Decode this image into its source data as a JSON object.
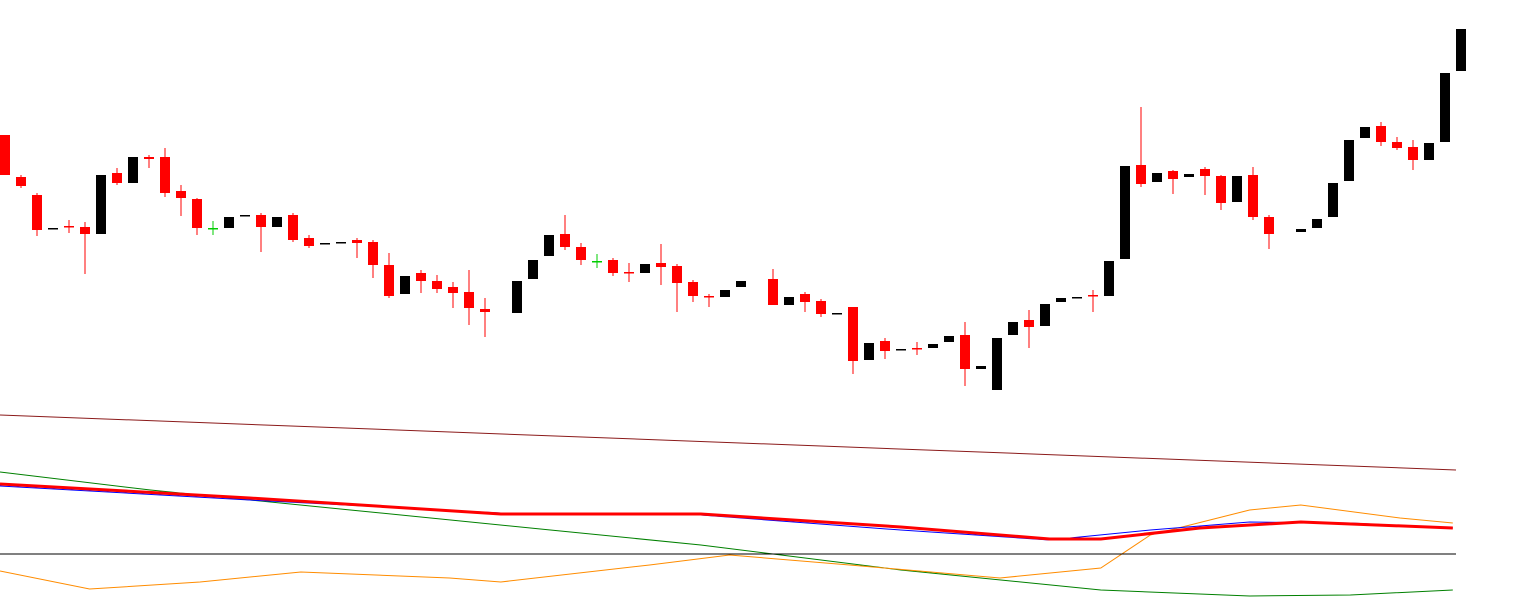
{
  "chart_data": {
    "type": "candlestick",
    "xlim": [
      0,
      94.75
    ],
    "ylim": [
      -7,
      600
    ],
    "x": [
      0,
      1,
      2,
      3,
      4,
      5,
      6,
      7,
      8,
      9,
      10,
      11,
      12,
      13,
      14,
      15,
      16,
      17,
      18,
      19,
      20,
      21,
      22,
      23,
      24,
      25,
      26,
      27,
      28,
      29,
      30,
      32,
      33,
      34,
      35,
      36,
      37,
      38,
      39,
      40,
      41,
      42,
      43,
      44,
      45,
      46,
      48,
      49,
      50,
      51,
      52,
      53,
      54,
      55,
      56,
      57,
      58,
      59,
      60,
      61,
      62,
      63,
      64,
      65,
      66,
      67,
      68,
      69,
      70,
      71,
      72,
      73,
      74,
      75,
      76,
      77,
      78,
      79,
      81,
      82,
      83,
      84,
      85,
      86,
      87,
      88,
      89,
      90,
      91
    ],
    "open": [
      465,
      423,
      405,
      372,
      374,
      373,
      366,
      427,
      417,
      443,
      443,
      409,
      401,
      372,
      372,
      385,
      385,
      373,
      385,
      362,
      357,
      358,
      360,
      358,
      335,
      306,
      327,
      319,
      313,
      308,
      291,
      287,
      321,
      344,
      366,
      353,
      339,
      340,
      328,
      327,
      337,
      334,
      318,
      304,
      303,
      313,
      321,
      295,
      306,
      299,
      287,
      293,
      240,
      259,
      251,
      252,
      252,
      258,
      265,
      231,
      210,
      265,
      280,
      274,
      298,
      303,
      305,
      304,
      341,
      435,
      418,
      429,
      423,
      431,
      424,
      398,
      425,
      383,
      368,
      372,
      383,
      419,
      462,
      474,
      458,
      453,
      440,
      458,
      529
    ],
    "high": [
      465,
      425,
      407,
      372,
      380,
      378,
      425,
      432,
      443,
      445,
      452,
      415,
      402,
      379,
      383,
      385,
      387,
      383,
      387,
      365,
      357,
      358,
      362,
      360,
      347,
      324,
      330,
      325,
      318,
      330,
      302,
      319,
      340,
      365,
      385,
      357,
      346,
      342,
      337,
      336,
      356,
      336,
      320,
      306,
      310,
      319,
      331,
      303,
      308,
      301,
      287,
      293,
      257,
      262,
      251,
      258,
      256,
      264,
      278,
      234,
      262,
      278,
      290,
      296,
      302,
      303,
      310,
      339,
      434,
      493,
      427,
      430,
      426,
      433,
      425,
      424,
      433,
      385,
      371,
      381,
      417,
      460,
      473,
      478,
      463,
      460,
      457,
      527,
      571
    ],
    "low": [
      425,
      412,
      364,
      372,
      367,
      326,
      366,
      415,
      417,
      432,
      403,
      384,
      365,
      365,
      372,
      385,
      348,
      373,
      358,
      352,
      357,
      358,
      342,
      322,
      302,
      306,
      307,
      307,
      292,
      275,
      263,
      287,
      321,
      344,
      350,
      335,
      332,
      324,
      318,
      327,
      315,
      288,
      298,
      293,
      303,
      313,
      295,
      295,
      288,
      283,
      287,
      226,
      240,
      241,
      251,
      245,
      252,
      258,
      214,
      231,
      210,
      265,
      252,
      274,
      298,
      303,
      288,
      304,
      341,
      413,
      418,
      406,
      423,
      405,
      390,
      398,
      380,
      351,
      368,
      372,
      383,
      419,
      462,
      454,
      450,
      430,
      440,
      458,
      529
    ],
    "close": [
      425,
      414,
      370,
      372,
      374,
      366,
      425,
      417,
      443,
      441,
      407,
      402,
      372,
      372,
      383,
      385,
      373,
      383,
      360,
      354,
      357,
      358,
      357,
      335,
      304,
      324,
      319,
      311,
      307,
      292,
      288,
      319,
      340,
      365,
      353,
      340,
      339,
      327,
      328,
      336,
      333,
      317,
      304,
      304,
      310,
      319,
      295,
      303,
      298,
      286,
      287,
      239,
      257,
      249,
      251,
      252,
      256,
      264,
      231,
      234,
      262,
      278,
      273,
      296,
      302,
      303,
      305,
      339,
      434,
      416,
      427,
      421,
      426,
      424,
      397,
      424,
      383,
      366,
      371,
      381,
      417,
      460,
      473,
      458,
      452,
      440,
      457,
      527,
      571
    ],
    "colors": [
      "#ff0000",
      "#ff0000",
      "#ff0000",
      "#000000",
      "#ff0000",
      "#ff0000",
      "#000000",
      "#ff0000",
      "#000000",
      "#ff0000",
      "#ff0000",
      "#ff0000",
      "#ff0000",
      "#00cc00",
      "#000000",
      "#000000",
      "#ff0000",
      "#000000",
      "#ff0000",
      "#ff0000",
      "#000000",
      "#000000",
      "#ff0000",
      "#ff0000",
      "#ff0000",
      "#000000",
      "#ff0000",
      "#ff0000",
      "#ff0000",
      "#ff0000",
      "#ff0000",
      "#000000",
      "#000000",
      "#000000",
      "#ff0000",
      "#ff0000",
      "#00cc00",
      "#ff0000",
      "#ff0000",
      "#000000",
      "#ff0000",
      "#ff0000",
      "#ff0000",
      "#ff0000",
      "#000000",
      "#000000",
      "#ff0000",
      "#000000",
      "#ff0000",
      "#ff0000",
      "#000000",
      "#ff0000",
      "#000000",
      "#ff0000",
      "#000000",
      "#ff0000",
      "#000000",
      "#000000",
      "#ff0000",
      "#000000",
      "#000000",
      "#000000",
      "#ff0000",
      "#000000",
      "#000000",
      "#000000",
      "#ff0000",
      "#000000",
      "#000000",
      "#ff0000",
      "#000000",
      "#ff0000",
      "#000000",
      "#ff0000",
      "#ff0000",
      "#000000",
      "#ff0000",
      "#ff0000",
      "#000000",
      "#000000",
      "#000000",
      "#000000",
      "#000000",
      "#ff0000",
      "#ff0000",
      "#ff0000",
      "#000000",
      "#000000",
      "#000000"
    ],
    "lines": [
      {
        "color": "#8b1a1a",
        "line_width": 1,
        "x": [
          0,
          91
        ],
        "values": [
          185,
          130
        ]
      },
      {
        "color": "#008000",
        "line_width": 1,
        "x": [
          0,
          9.4,
          21.9,
          34.4,
          43.8,
          56.3,
          68.8,
          78.1,
          84.4,
          90.8
        ],
        "values": [
          128,
          110,
          90,
          70,
          55,
          30,
          10,
          4,
          5,
          10
        ]
      },
      {
        "color": "#ff8c00",
        "line_width": 1,
        "x": [
          0,
          5.6,
          12.5,
          18.8,
          28.1,
          31.3,
          40.6,
          45.6,
          53.1,
          62.5,
          68.8,
          71.9,
          78.1,
          81.3,
          87.5,
          90.8
        ],
        "values": [
          29,
          11,
          18,
          28,
          22,
          18,
          35,
          45,
          35,
          22,
          32,
          65,
          90,
          95,
          82,
          77
        ]
      },
      {
        "color": "#000000",
        "line_width": 1,
        "x": [
          0,
          91
        ],
        "values": [
          46,
          46
        ]
      },
      {
        "color": "#0000ff",
        "line_width": 1,
        "x": [
          0,
          15.6,
          31.3,
          43.8,
          56.3,
          65.6,
          71.9,
          78.1,
          84.4,
          90.8
        ],
        "values": [
          114,
          100,
          87,
          85,
          70,
          60,
          70,
          78,
          77,
          72
        ]
      },
      {
        "color": "#ff0000",
        "line_width": 3,
        "x": [
          0,
          15.6,
          31.3,
          43.8,
          56.3,
          65.6,
          68.8,
          75,
          81.3,
          90.8
        ],
        "values": [
          116,
          102,
          86,
          86,
          73,
          61,
          61,
          72,
          78,
          72
        ]
      }
    ]
  }
}
